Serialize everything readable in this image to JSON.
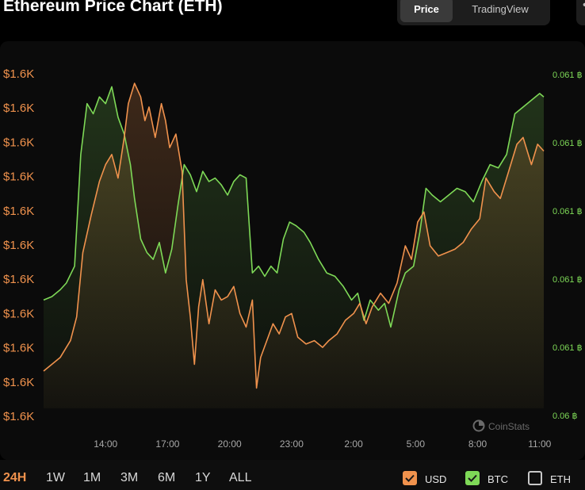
{
  "page": {
    "title": "Ethereum Price Chart (ETH)",
    "view_tabs": [
      {
        "label": "Price",
        "active": true
      },
      {
        "label": "TradingView",
        "active": false
      }
    ],
    "more_icon": "more-horizontal-icon"
  },
  "ranges": [
    {
      "label": "24H",
      "active": true
    },
    {
      "label": "1W",
      "active": false
    },
    {
      "label": "1M",
      "active": false
    },
    {
      "label": "3M",
      "active": false
    },
    {
      "label": "6M",
      "active": false
    },
    {
      "label": "1Y",
      "active": false
    },
    {
      "label": "ALL",
      "active": false
    }
  ],
  "legend": [
    {
      "label": "USD",
      "checked": true,
      "color": "#f0924d"
    },
    {
      "label": "BTC",
      "checked": true,
      "color": "#7ed957"
    },
    {
      "label": "ETH",
      "checked": false,
      "color": "#c8c8c8"
    }
  ],
  "watermark": "CoinStats",
  "chart_data": {
    "type": "line",
    "x_tick_labels": [
      "14:00",
      "17:00",
      "20:00",
      "23:00",
      "2:00",
      "5:00",
      "8:00",
      "11:00"
    ],
    "x_tick_hours": [
      14,
      17,
      20,
      23,
      26,
      29,
      32,
      35
    ],
    "x_range_hours": [
      11.0,
      35.2
    ],
    "left_axis": {
      "tick_labels": [
        "$1.6K",
        "$1.6K",
        "$1.6K",
        "$1.6K",
        "$1.6K",
        "$1.6K",
        "$1.6K",
        "$1.6K",
        "$1.6K",
        "$1.6K",
        "$1.6K"
      ],
      "color": "#f0924d"
    },
    "right_axis": {
      "tick_labels": [
        "0.061 ฿",
        "0.061 ฿",
        "0.061 ฿",
        "0.061 ฿",
        "0.061 ฿",
        "0.06 ฿"
      ],
      "color": "#7ed957"
    },
    "grid": false,
    "series": [
      {
        "name": "USD",
        "color": "#f0924d",
        "y_range": [
          1590,
          1690
        ],
        "points": [
          [
            11.0,
            1601
          ],
          [
            11.4,
            1603
          ],
          [
            11.8,
            1605
          ],
          [
            12.3,
            1610
          ],
          [
            12.6,
            1617
          ],
          [
            12.9,
            1636
          ],
          [
            13.3,
            1647
          ],
          [
            13.7,
            1657
          ],
          [
            14.0,
            1662
          ],
          [
            14.3,
            1665
          ],
          [
            14.6,
            1658
          ],
          [
            14.9,
            1670
          ],
          [
            15.1,
            1680
          ],
          [
            15.4,
            1686
          ],
          [
            15.7,
            1682
          ],
          [
            15.9,
            1675
          ],
          [
            16.1,
            1679
          ],
          [
            16.4,
            1670
          ],
          [
            16.7,
            1680
          ],
          [
            16.9,
            1675
          ],
          [
            17.1,
            1667
          ],
          [
            17.4,
            1671
          ],
          [
            17.7,
            1660
          ],
          [
            17.9,
            1628
          ],
          [
            18.1,
            1617
          ],
          [
            18.3,
            1603
          ],
          [
            18.5,
            1620
          ],
          [
            18.7,
            1628
          ],
          [
            19.0,
            1615
          ],
          [
            19.3,
            1625
          ],
          [
            19.6,
            1622
          ],
          [
            19.9,
            1623
          ],
          [
            20.2,
            1626
          ],
          [
            20.5,
            1618
          ],
          [
            20.8,
            1614
          ],
          [
            21.1,
            1622
          ],
          [
            21.3,
            1596
          ],
          [
            21.5,
            1605
          ],
          [
            21.8,
            1610
          ],
          [
            22.1,
            1615
          ],
          [
            22.4,
            1612
          ],
          [
            22.7,
            1617
          ],
          [
            23.0,
            1618
          ],
          [
            23.3,
            1611
          ],
          [
            23.7,
            1609
          ],
          [
            24.1,
            1610
          ],
          [
            24.5,
            1608
          ],
          [
            24.8,
            1610
          ],
          [
            25.2,
            1612
          ],
          [
            25.6,
            1616
          ],
          [
            26.0,
            1618
          ],
          [
            26.3,
            1621
          ],
          [
            26.6,
            1615
          ],
          [
            26.9,
            1620
          ],
          [
            27.3,
            1624
          ],
          [
            27.7,
            1621
          ],
          [
            28.1,
            1627
          ],
          [
            28.5,
            1638
          ],
          [
            28.8,
            1634
          ],
          [
            29.1,
            1645
          ],
          [
            29.4,
            1648
          ],
          [
            29.7,
            1638
          ],
          [
            30.1,
            1635
          ],
          [
            30.5,
            1636
          ],
          [
            30.9,
            1637
          ],
          [
            31.3,
            1639
          ],
          [
            31.7,
            1643
          ],
          [
            32.1,
            1646
          ],
          [
            32.4,
            1658
          ],
          [
            32.8,
            1654
          ],
          [
            33.1,
            1652
          ],
          [
            33.5,
            1660
          ],
          [
            33.9,
            1668
          ],
          [
            34.2,
            1670
          ],
          [
            34.6,
            1662
          ],
          [
            34.9,
            1668
          ],
          [
            35.2,
            1666
          ]
        ]
      },
      {
        "name": "BTC",
        "color": "#7ed957",
        "y_range": [
          0.06055,
          0.06155
        ],
        "points": [
          [
            11.0,
            0.06087
          ],
          [
            11.4,
            0.06088
          ],
          [
            11.8,
            0.0609
          ],
          [
            12.1,
            0.06092
          ],
          [
            12.5,
            0.06097
          ],
          [
            12.8,
            0.0613
          ],
          [
            13.1,
            0.06145
          ],
          [
            13.4,
            0.06142
          ],
          [
            13.7,
            0.06147
          ],
          [
            14.0,
            0.06145
          ],
          [
            14.3,
            0.0615
          ],
          [
            14.6,
            0.06141
          ],
          [
            14.9,
            0.06136
          ],
          [
            15.2,
            0.06127
          ],
          [
            15.4,
            0.06117
          ],
          [
            15.7,
            0.06105
          ],
          [
            16.0,
            0.06101
          ],
          [
            16.3,
            0.06099
          ],
          [
            16.6,
            0.06104
          ],
          [
            16.9,
            0.06095
          ],
          [
            17.2,
            0.06102
          ],
          [
            17.5,
            0.06115
          ],
          [
            17.8,
            0.06127
          ],
          [
            18.1,
            0.06124
          ],
          [
            18.4,
            0.06119
          ],
          [
            18.7,
            0.06125
          ],
          [
            19.0,
            0.06122
          ],
          [
            19.3,
            0.06123
          ],
          [
            19.6,
            0.06121
          ],
          [
            19.9,
            0.06118
          ],
          [
            20.2,
            0.06122
          ],
          [
            20.5,
            0.06124
          ],
          [
            20.8,
            0.06123
          ],
          [
            21.1,
            0.06095
          ],
          [
            21.4,
            0.06097
          ],
          [
            21.7,
            0.06094
          ],
          [
            22.0,
            0.06097
          ],
          [
            22.3,
            0.06095
          ],
          [
            22.6,
            0.06105
          ],
          [
            22.9,
            0.0611
          ],
          [
            23.2,
            0.06109
          ],
          [
            23.6,
            0.06107
          ],
          [
            23.9,
            0.06104
          ],
          [
            24.3,
            0.06099
          ],
          [
            24.7,
            0.06095
          ],
          [
            25.1,
            0.06094
          ],
          [
            25.5,
            0.06091
          ],
          [
            25.9,
            0.06087
          ],
          [
            26.2,
            0.06089
          ],
          [
            26.5,
            0.06081
          ],
          [
            26.8,
            0.06087
          ],
          [
            27.2,
            0.06084
          ],
          [
            27.5,
            0.06086
          ],
          [
            27.8,
            0.06079
          ],
          [
            28.2,
            0.0609
          ],
          [
            28.5,
            0.06095
          ],
          [
            28.9,
            0.06097
          ],
          [
            29.2,
            0.06107
          ],
          [
            29.5,
            0.0612
          ],
          [
            29.8,
            0.06118
          ],
          [
            30.2,
            0.06116
          ],
          [
            30.6,
            0.06118
          ],
          [
            31.0,
            0.0612
          ],
          [
            31.4,
            0.06119
          ],
          [
            31.8,
            0.06116
          ],
          [
            32.2,
            0.06122
          ],
          [
            32.6,
            0.06127
          ],
          [
            33.0,
            0.06126
          ],
          [
            33.4,
            0.0613
          ],
          [
            33.8,
            0.06142
          ],
          [
            34.2,
            0.06144
          ],
          [
            34.6,
            0.06146
          ],
          [
            35.0,
            0.06148
          ],
          [
            35.2,
            0.06147
          ]
        ]
      }
    ]
  }
}
